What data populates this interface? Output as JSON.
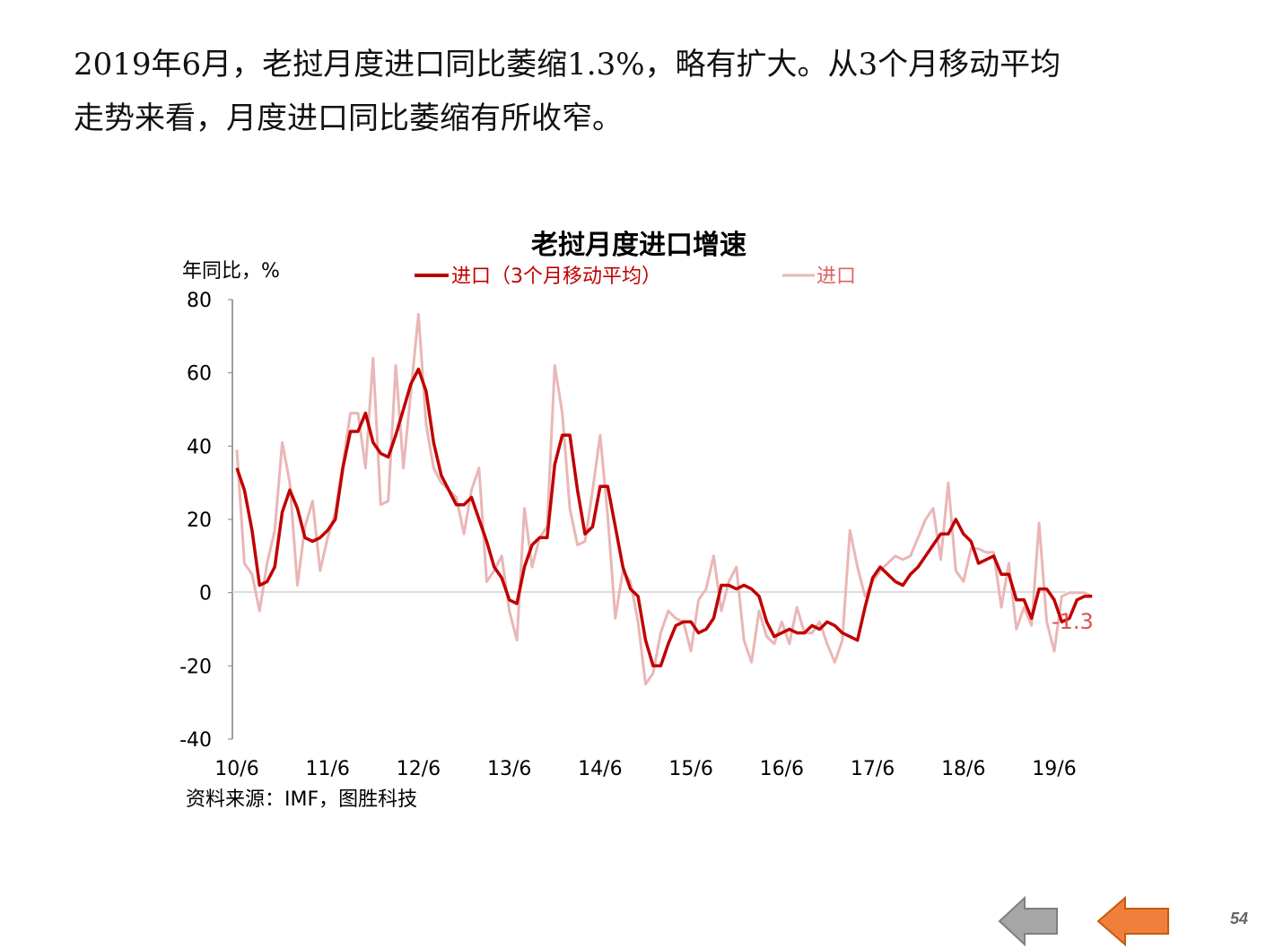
{
  "headline": {
    "line1": "2019年6月，老挝月度进口同比萎缩1.3%，略有扩大。从3个月移动平均",
    "line2": "走势来看，月度进口同比萎缩有所收窄。"
  },
  "chart_data": {
    "type": "line",
    "title": "老挝月度进口增速",
    "ylabel": "年同比，%",
    "ylim": [
      -40,
      80
    ],
    "yticks": [
      "80",
      "60",
      "40",
      "20",
      "0",
      "-20",
      "-40"
    ],
    "xticks": [
      "10/6",
      "11/6",
      "12/6",
      "13/6",
      "14/6",
      "15/6",
      "16/6",
      "17/6",
      "18/6",
      "19/6"
    ],
    "x_start": "2010-06",
    "x_end": "2019-06",
    "legend_position": "top",
    "series": [
      {
        "name": "进口（3个月移动平均）",
        "color": "#c00000",
        "values": [
          34,
          28,
          17,
          2,
          3,
          7,
          22,
          28,
          23,
          15,
          14,
          15,
          17,
          20,
          34,
          44,
          44,
          49,
          41,
          38,
          37,
          43,
          50,
          57,
          61,
          55,
          41,
          32,
          28,
          24,
          24,
          26,
          20,
          14,
          7,
          4,
          -2,
          -3,
          7,
          13,
          15,
          15,
          35,
          43,
          43,
          28,
          16,
          18,
          29,
          29,
          18,
          7,
          1,
          -1,
          -13,
          -20,
          -20,
          -14,
          -9,
          -8,
          -8,
          -11,
          -10,
          -7,
          2,
          2,
          1,
          2,
          1,
          -1,
          -8,
          -12,
          -11,
          -10,
          -11,
          -11,
          -9,
          -10,
          -8,
          -9,
          -11,
          -12,
          -13,
          -4,
          4,
          7,
          5,
          3,
          2,
          5,
          7,
          10,
          13,
          16,
          16,
          20,
          16,
          14,
          8,
          9,
          10,
          5,
          5,
          -2,
          -2,
          -7,
          1,
          1,
          -2,
          -8,
          -7,
          -2,
          -1,
          -1
        ]
      },
      {
        "name": "进口",
        "color": "#eab6b6",
        "values": [
          39,
          8,
          5,
          -5,
          8,
          17,
          41,
          30,
          2,
          18,
          25,
          6,
          15,
          22,
          35,
          49,
          49,
          34,
          64,
          24,
          25,
          62,
          34,
          55,
          76,
          46,
          34,
          30,
          28,
          26,
          16,
          28,
          34,
          3,
          6,
          10,
          -5,
          -13,
          23,
          7,
          15,
          18,
          62,
          49,
          23,
          13,
          14,
          28,
          43,
          21,
          -7,
          6,
          3,
          -8,
          -25,
          -22,
          -11,
          -5,
          -7,
          -8,
          -16,
          -2,
          1,
          10,
          -5,
          3,
          7,
          -13,
          -19,
          -5,
          -12,
          -14,
          -8,
          -14,
          -4,
          -11,
          -11,
          -8,
          -14,
          -19,
          -13,
          17,
          7,
          -1,
          3,
          6,
          8,
          10,
          9,
          10,
          15,
          20,
          23,
          9,
          30,
          6,
          3,
          12,
          12,
          11,
          11,
          -4,
          8,
          -10,
          -4,
          -9,
          19,
          -8,
          -16,
          -1,
          0,
          0,
          0,
          -1
        ]
      }
    ],
    "annotation": "-1.3",
    "source": "资料来源：IMF，图胜科技"
  },
  "page_number": "54",
  "colors": {
    "main_line": "#c00000",
    "raw_line": "#eab6b6",
    "annotation": "#d9534f",
    "nav_back": "#a6a6a6",
    "nav_home": "#f07f3c"
  }
}
